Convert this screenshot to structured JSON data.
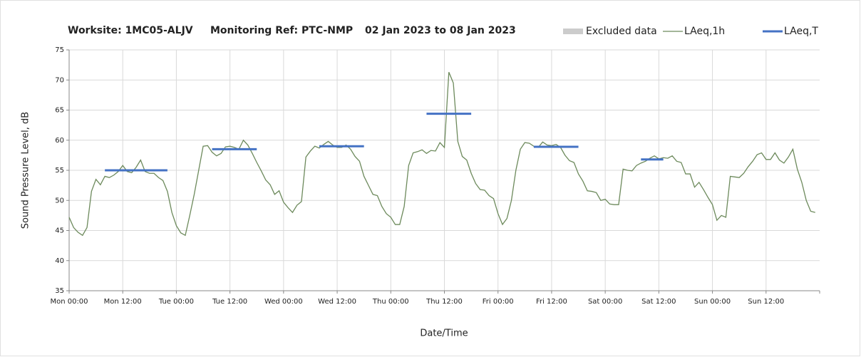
{
  "chart_data": {
    "type": "line",
    "title": {
      "worksite": "Worksite: 1MC05-ALJV",
      "ref": "Monitoring Ref: PTC-NMP",
      "period": "02 Jan 2023 to 08 Jan 2023"
    },
    "xlabel": "Date/Time",
    "ylabel": "Sound Pressure Level, dB",
    "xlim": [
      0,
      168
    ],
    "ylim": [
      35,
      75
    ],
    "yticks": [
      35,
      40,
      45,
      50,
      55,
      60,
      65,
      70,
      75
    ],
    "xticks": [
      {
        "value": 0,
        "label": "Mon 00:00"
      },
      {
        "value": 12,
        "label": "Mon 12:00"
      },
      {
        "value": 24,
        "label": "Tue 00:00"
      },
      {
        "value": 36,
        "label": "Tue 12:00"
      },
      {
        "value": 48,
        "label": "Wed 00:00"
      },
      {
        "value": 60,
        "label": "Wed 12:00"
      },
      {
        "value": 72,
        "label": "Thu 00:00"
      },
      {
        "value": 84,
        "label": "Thu 12:00"
      },
      {
        "value": 96,
        "label": "Fri 00:00"
      },
      {
        "value": 108,
        "label": "Fri 12:00"
      },
      {
        "value": 120,
        "label": "Sat 00:00"
      },
      {
        "value": 132,
        "label": "Sat 12:00"
      },
      {
        "value": 144,
        "label": "Sun 00:00"
      },
      {
        "value": 156,
        "label": "Sun 12:00"
      }
    ],
    "grid": true,
    "legend": "top-right",
    "excluded": {
      "name": "Excluded data",
      "color": "#cccccc"
    },
    "series": [
      {
        "name": "LAeq,1h",
        "color": "#6d8a5c",
        "x": [
          0,
          1,
          2,
          3,
          4,
          5,
          6,
          7,
          8,
          9,
          10,
          11,
          12,
          13,
          14,
          15,
          16,
          17,
          18,
          19,
          20,
          21,
          22,
          23,
          24,
          25,
          26,
          27,
          28,
          29,
          30,
          31,
          32,
          33,
          34,
          35,
          36,
          37,
          38,
          39,
          40,
          41,
          42,
          43,
          44,
          45,
          46,
          47,
          48,
          49,
          50,
          51,
          52,
          53,
          54,
          55,
          56,
          57,
          58,
          59,
          60,
          61,
          62,
          63,
          64,
          65,
          66,
          67,
          68,
          69,
          70,
          71,
          72,
          73,
          74,
          75,
          76,
          77,
          78,
          79,
          80,
          81,
          82,
          83,
          84,
          85,
          86,
          87,
          88,
          89,
          90,
          91,
          92,
          93,
          94,
          95,
          96,
          97,
          98,
          99,
          100,
          101,
          102,
          103,
          104,
          105,
          106,
          107,
          108,
          109,
          110,
          111,
          112,
          113,
          114,
          115,
          116,
          117,
          118,
          119,
          120,
          121,
          122,
          123,
          124,
          125,
          126,
          127,
          128,
          129,
          130,
          131,
          132,
          133,
          134,
          135,
          136,
          137,
          138,
          139,
          140,
          141,
          142,
          143,
          144,
          145,
          146,
          147,
          148,
          149,
          150,
          151,
          152,
          153,
          154,
          155,
          156,
          157,
          158,
          159,
          160,
          161,
          162,
          163,
          164,
          165,
          166,
          167
        ],
        "values": [
          47.2,
          45.5,
          44.7,
          44.2,
          45.5,
          51.5,
          53.5,
          52.6,
          54,
          53.8,
          54.2,
          54.8,
          55.8,
          54.8,
          54.6,
          55.5,
          56.7,
          54.8,
          54.5,
          54.5,
          53.8,
          53.3,
          51.5,
          48,
          45.8,
          44.6,
          44.2,
          47.5,
          51,
          55,
          59,
          59.1,
          58,
          57.4,
          57.8,
          58.9,
          59,
          58.8,
          58.5,
          60,
          59.2,
          57.8,
          56.3,
          54.9,
          53.4,
          52.6,
          51,
          51.6,
          49.7,
          48.8,
          48,
          49.2,
          49.8,
          57.2,
          58.2,
          59,
          58.7,
          59.3,
          59.8,
          59.2,
          58.8,
          58.8,
          59.2,
          58.5,
          57.3,
          56.5,
          54,
          52.5,
          51,
          50.8,
          49,
          47.8,
          47.2,
          46,
          46,
          49,
          55.8,
          57.9,
          58.1,
          58.4,
          57.8,
          58.3,
          58.2,
          59.6,
          58.8,
          71.3,
          69.5,
          59.8,
          57.3,
          56.7,
          54.5,
          52.8,
          51.8,
          51.7,
          50.8,
          50.3,
          47.8,
          46,
          47,
          50,
          55,
          58.5,
          59.6,
          59.5,
          59,
          58.8,
          59.7,
          59.2,
          59.1,
          59.3,
          58.8,
          57.5,
          56.6,
          56.3,
          54.4,
          53.2,
          51.6,
          51.5,
          51.3,
          50,
          50.2,
          49.4,
          49.3,
          49.3,
          55.2,
          55,
          54.9,
          55.8,
          56.2,
          56.5,
          57,
          57.4,
          56.9,
          57.1,
          57,
          57.4,
          56.5,
          56.3,
          54.4,
          54.4,
          52.2,
          53,
          51.8,
          50.5,
          49.3,
          46.7,
          47.5,
          47.2,
          54,
          53.9,
          53.8,
          54.5,
          55.6,
          56.5,
          57.6,
          57.9,
          56.8,
          56.8,
          57.9,
          56.7,
          56.2,
          57.2,
          58.5,
          55.2,
          53,
          50,
          48.2,
          48
        ]
      },
      {
        "name": "LAeq,T",
        "color": "#4472c4",
        "x_start": [
          8,
          32,
          56,
          80,
          104,
          128
        ],
        "x_end": [
          22,
          42,
          66,
          90,
          114,
          133
        ],
        "values": [
          55,
          58.5,
          59,
          64.4,
          58.9,
          56.8
        ]
      }
    ]
  }
}
